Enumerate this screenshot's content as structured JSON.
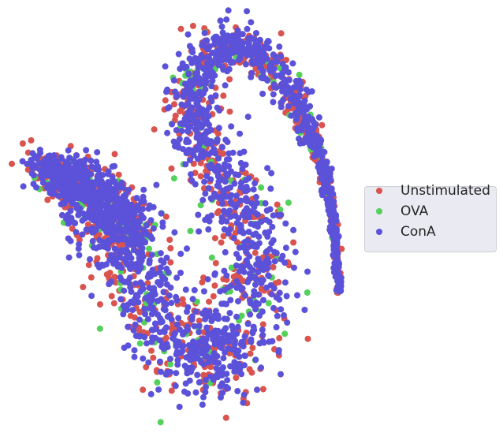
{
  "chart_data": {
    "type": "scatter",
    "title": "",
    "xlabel": "",
    "ylabel": "",
    "grid": false,
    "axes_visible": false,
    "legend_placement": "center-right, outside",
    "series": [
      {
        "name": "Unstimulated",
        "color": "#d9534f",
        "approx_share": 0.3
      },
      {
        "name": "OVA",
        "color": "#55d05a",
        "approx_share": 0.05
      },
      {
        "name": "ConA",
        "color": "#5b52d9",
        "approx_share": 0.65
      }
    ]
  }
}
